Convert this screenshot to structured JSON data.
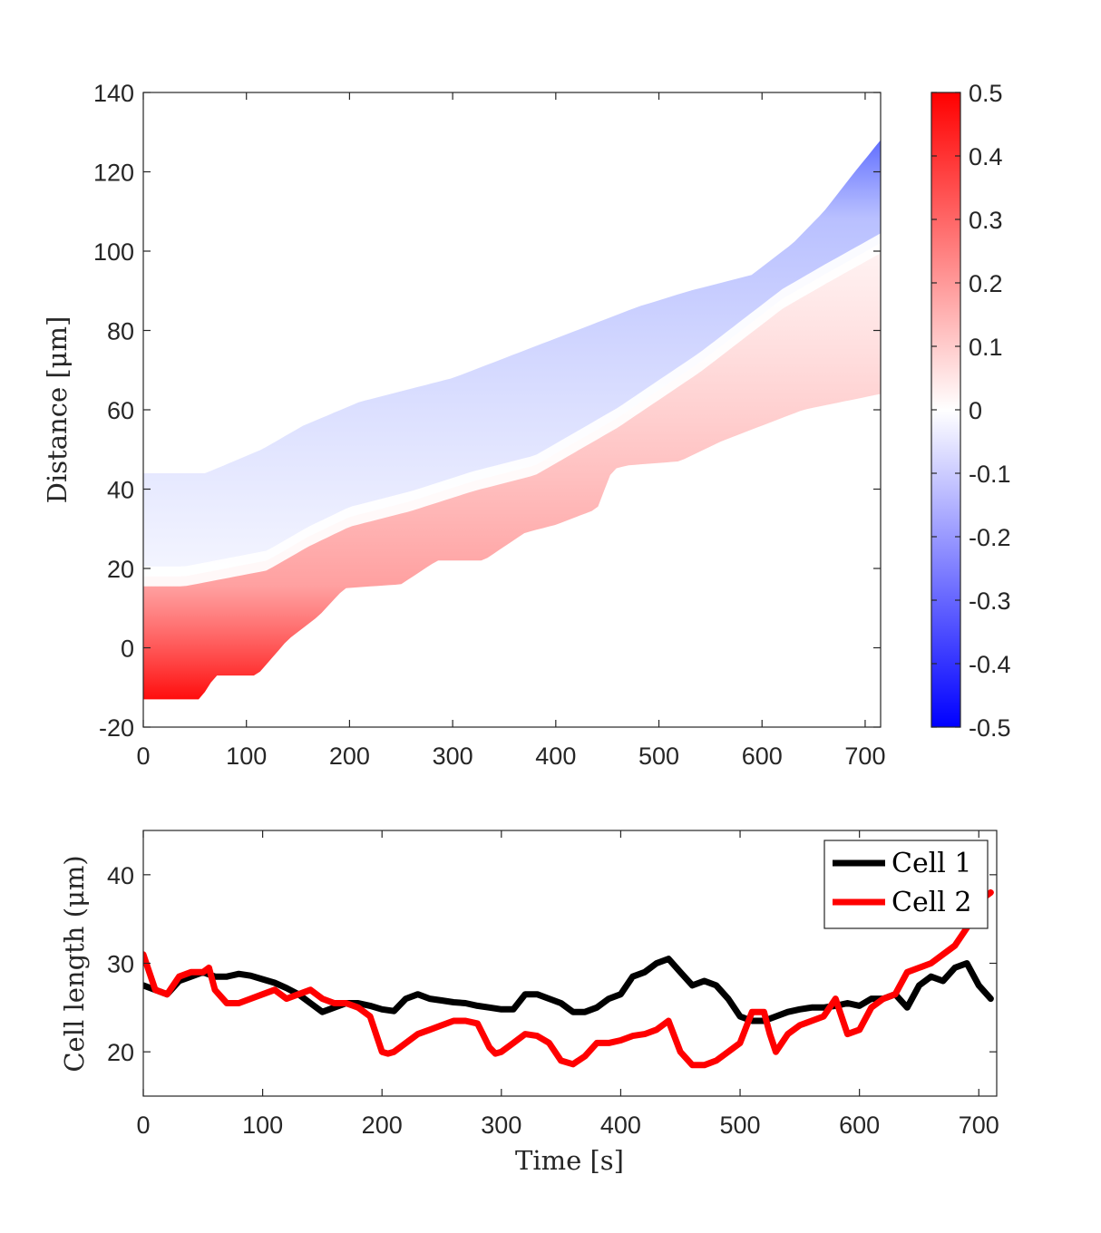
{
  "chart_data": [
    {
      "type": "heatmap",
      "xlabel": "",
      "ylabel": "Distance [μm]",
      "xlim": [
        0,
        715
      ],
      "ylim": [
        -20,
        140
      ],
      "xticks": [
        0,
        100,
        200,
        300,
        400,
        500,
        600,
        700
      ],
      "yticks": [
        -20,
        0,
        20,
        40,
        60,
        80,
        100,
        120,
        140
      ],
      "colorbar": {
        "range": [
          -0.5,
          0.5
        ],
        "ticks": [
          "0.5",
          "0.4",
          "0.3",
          "0.2",
          "0.1",
          "0",
          "-0.1",
          "-0.2",
          "-0.3",
          "-0.4",
          "-0.5"
        ],
        "colormap": [
          "#0000ff",
          "#ffffff",
          "#ff0000"
        ]
      },
      "front": [
        [
          0,
          44
        ],
        [
          60,
          44
        ],
        [
          115,
          50
        ],
        [
          155,
          56
        ],
        [
          210,
          62
        ],
        [
          300,
          68
        ],
        [
          360,
          74
        ],
        [
          420,
          80
        ],
        [
          480,
          86
        ],
        [
          530,
          90
        ],
        [
          590,
          94
        ],
        [
          630,
          102
        ],
        [
          660,
          110
        ],
        [
          690,
          120
        ],
        [
          715,
          128
        ]
      ],
      "interface": [
        [
          0,
          18
        ],
        [
          40,
          18
        ],
        [
          120,
          22
        ],
        [
          160,
          28
        ],
        [
          200,
          33
        ],
        [
          260,
          37
        ],
        [
          320,
          42
        ],
        [
          380,
          46
        ],
        [
          420,
          52
        ],
        [
          460,
          58
        ],
        [
          500,
          65
        ],
        [
          540,
          72
        ],
        [
          580,
          80
        ],
        [
          620,
          88
        ],
        [
          660,
          94
        ],
        [
          715,
          102
        ]
      ],
      "rear": [
        [
          0,
          -13
        ],
        [
          55,
          -13
        ],
        [
          70,
          -7
        ],
        [
          110,
          -7
        ],
        [
          140,
          2
        ],
        [
          170,
          8
        ],
        [
          195,
          15
        ],
        [
          250,
          16
        ],
        [
          285,
          22
        ],
        [
          330,
          22
        ],
        [
          370,
          29
        ],
        [
          400,
          31
        ],
        [
          440,
          35
        ],
        [
          455,
          45
        ],
        [
          470,
          46
        ],
        [
          520,
          47
        ],
        [
          560,
          52
        ],
        [
          600,
          56
        ],
        [
          640,
          60
        ],
        [
          715,
          64
        ]
      ]
    },
    {
      "type": "line",
      "xlabel": "Time [s]",
      "ylabel": "Cell length (μm)",
      "xlim": [
        0,
        715
      ],
      "ylim": [
        15,
        45
      ],
      "xticks": [
        0,
        100,
        200,
        300,
        400,
        500,
        600,
        700
      ],
      "yticks": [
        20,
        30,
        40
      ],
      "legend_position": "top-right",
      "series": [
        {
          "name": "Cell 1",
          "color": "#000000",
          "x": [
            0,
            10,
            20,
            30,
            40,
            50,
            60,
            70,
            80,
            90,
            100,
            110,
            120,
            130,
            140,
            150,
            160,
            170,
            180,
            190,
            200,
            210,
            220,
            230,
            240,
            250,
            260,
            270,
            280,
            290,
            300,
            310,
            320,
            330,
            340,
            350,
            360,
            370,
            380,
            390,
            400,
            410,
            420,
            430,
            440,
            450,
            460,
            470,
            480,
            490,
            500,
            510,
            520,
            530,
            540,
            550,
            560,
            570,
            580,
            590,
            600,
            610,
            620,
            630,
            640,
            650,
            660,
            670,
            680,
            690,
            700,
            710
          ],
          "values": [
            27.5,
            27,
            26.5,
            28,
            28.5,
            29,
            28.5,
            28.5,
            28.8,
            28.6,
            28.2,
            27.8,
            27.2,
            26.5,
            25.5,
            24.5,
            25,
            25.5,
            25.5,
            25.2,
            24.8,
            24.6,
            26,
            26.5,
            26,
            25.8,
            25.6,
            25.5,
            25.2,
            25,
            24.8,
            24.8,
            26.5,
            26.5,
            26,
            25.5,
            24.5,
            24.5,
            25,
            26,
            26.5,
            28.5,
            29,
            30,
            30.5,
            29,
            27.5,
            28,
            27.5,
            26,
            24,
            23.5,
            23.5,
            24,
            24.5,
            24.8,
            25,
            25,
            25.2,
            25.5,
            25.2,
            26,
            26,
            26.5,
            25,
            27.5,
            28.5,
            28,
            29.5,
            30,
            27.5,
            26
          ]
        },
        {
          "name": "Cell 2",
          "color": "#ff0000",
          "x": [
            0,
            10,
            20,
            30,
            40,
            50,
            55,
            60,
            70,
            80,
            90,
            100,
            110,
            120,
            130,
            140,
            150,
            160,
            170,
            180,
            190,
            200,
            205,
            210,
            220,
            230,
            240,
            250,
            260,
            270,
            280,
            290,
            295,
            300,
            310,
            320,
            330,
            340,
            350,
            360,
            370,
            380,
            390,
            400,
            410,
            420,
            430,
            440,
            450,
            460,
            470,
            480,
            490,
            500,
            510,
            520,
            525,
            530,
            540,
            550,
            560,
            570,
            580,
            590,
            600,
            610,
            620,
            630,
            640,
            650,
            660,
            670,
            680,
            690,
            700,
            710
          ],
          "values": [
            31,
            27,
            26.5,
            28.5,
            29,
            29,
            29.5,
            27,
            25.5,
            25.5,
            26,
            26.5,
            27,
            26,
            26.5,
            27,
            26,
            25.5,
            25.5,
            25,
            24,
            20,
            19.8,
            20,
            21,
            22,
            22.5,
            23,
            23.5,
            23.5,
            23.2,
            20.5,
            19.8,
            20,
            21,
            22,
            21.8,
            21,
            19,
            18.6,
            19.5,
            21,
            21,
            21.3,
            21.8,
            22,
            22.5,
            23.5,
            20,
            18.5,
            18.5,
            19,
            20,
            21,
            24.5,
            24.5,
            22,
            20,
            22,
            23,
            23.5,
            24,
            26,
            22,
            22.5,
            25,
            26,
            26.5,
            29,
            29.5,
            30,
            31,
            32,
            34,
            37,
            38
          ]
        }
      ]
    }
  ]
}
